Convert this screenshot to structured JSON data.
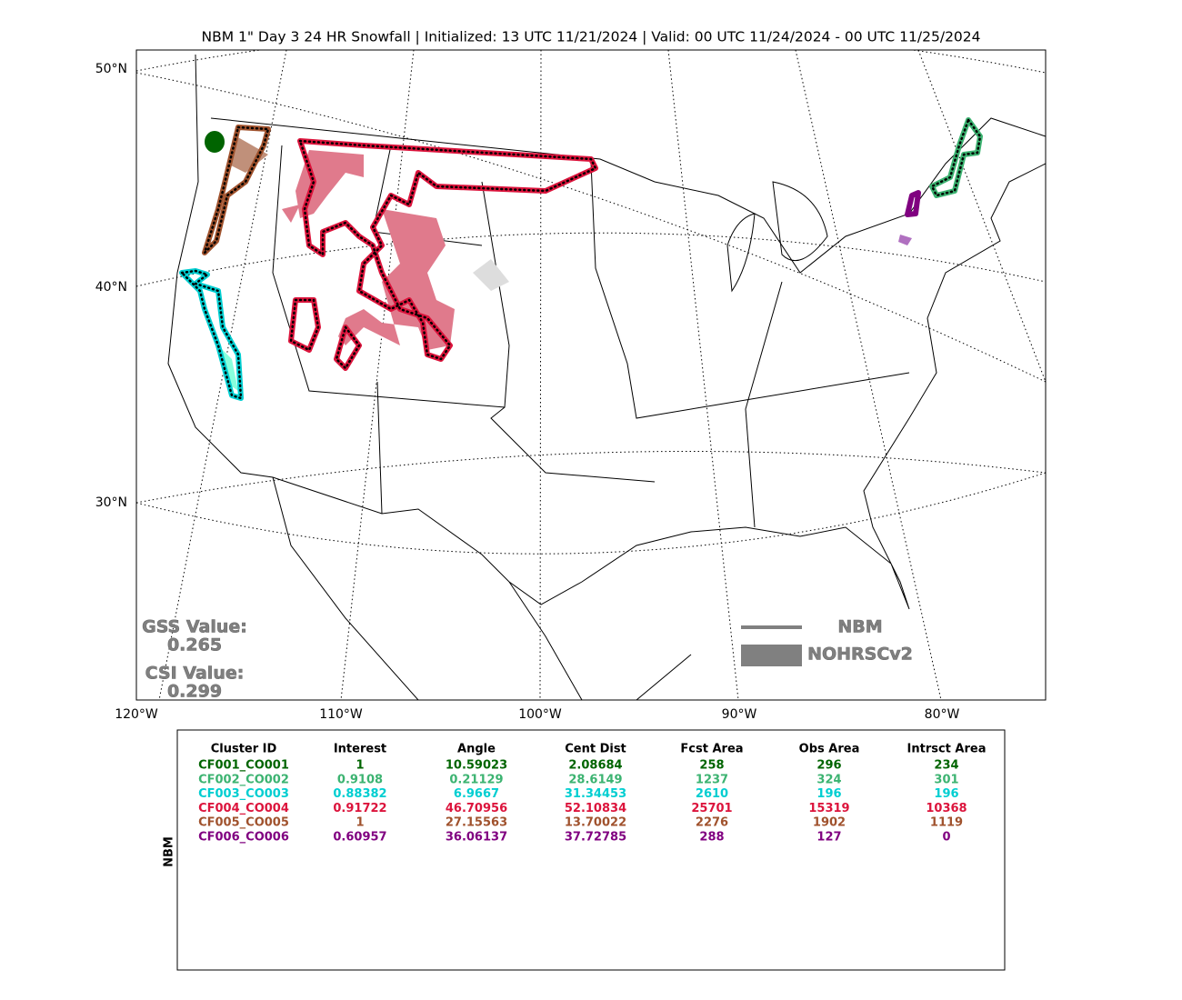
{
  "header": {
    "title": "NBM 1\" Day 3 24 HR Snowfall | Initialized: 13 UTC 11/21/2024 | Valid: 00 UTC 11/24/2024 - 00 UTC 11/25/2024"
  },
  "map": {
    "lat_labels": [
      "50°N",
      "40°N",
      "30°N"
    ],
    "lon_labels": [
      "120°W",
      "110°W",
      "100°W",
      "90°W",
      "80°W"
    ],
    "stats": {
      "gss_label": "GSS Value:",
      "gss_value": "0.265",
      "csi_label": "CSI Value:",
      "csi_value": "0.299"
    },
    "legend": {
      "line_label": "NBM",
      "fill_label": "NOHRSCv2"
    }
  },
  "table": {
    "side_label": "NBM",
    "columns": [
      "Cluster ID",
      "Interest",
      "Angle",
      "Cent Dist",
      "Fcst Area",
      "Obs Area",
      "Intrsct Area"
    ],
    "rows": [
      {
        "color": "#006400",
        "cells": [
          "CF001_CO001",
          "1",
          "10.59023",
          "2.08684",
          "258",
          "296",
          "234"
        ]
      },
      {
        "color": "#3cb371",
        "cells": [
          "CF002_CO002",
          "0.9108",
          "0.21129",
          "28.6149",
          "1237",
          "324",
          "301"
        ]
      },
      {
        "color": "#00ced1",
        "cells": [
          "CF003_CO003",
          "0.88382",
          "6.9667",
          "31.34453",
          "2610",
          "196",
          "196"
        ]
      },
      {
        "color": "#dc143c",
        "cells": [
          "CF004_CO004",
          "0.91722",
          "46.70956",
          "52.10834",
          "25701",
          "15319",
          "10368"
        ]
      },
      {
        "color": "#a0522d",
        "cells": [
          "CF005_CO005",
          "1",
          "27.15563",
          "13.70022",
          "2276",
          "1902",
          "1119"
        ]
      },
      {
        "color": "#800080",
        "cells": [
          "CF006_CO006",
          "0.60957",
          "36.06137",
          "37.72785",
          "288",
          "127",
          "0"
        ]
      }
    ]
  }
}
